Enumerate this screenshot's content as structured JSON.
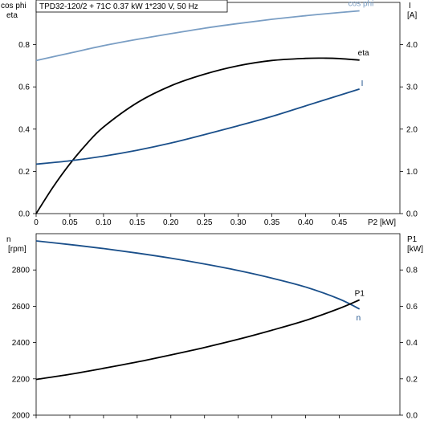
{
  "header": {
    "title": "TPD32-120/2 + 71C   0.37 kW   1*230 V, 50 Hz"
  },
  "colors": {
    "cos_phi": "#7a9ec4",
    "eta": "#000000",
    "current": "#1a4f8a",
    "n": "#1a4f8a",
    "p1": "#000000",
    "axis": "#000000"
  },
  "chart_data": [
    {
      "type": "line",
      "title": "TPD32-120/2 + 71C   0.37 kW   1*230 V, 50 Hz",
      "xlabel": "P2 [kW]",
      "ylabel_left": [
        "cos phi",
        "eta"
      ],
      "ylabel_right": [
        "I",
        "[A]"
      ],
      "xlim": [
        0,
        0.54
      ],
      "ylim_left": [
        0,
        1.0
      ],
      "ylim_right": [
        0,
        5.0
      ],
      "x_ticks": [
        "0",
        "0.05",
        "0.10",
        "0.15",
        "0.20",
        "0.25",
        "0.30",
        "0.35",
        "0.40",
        "0.45"
      ],
      "y_ticks_left": [
        "0.0",
        "0.2",
        "0.4",
        "0.6",
        "0.8"
      ],
      "y_ticks_right": [
        "0.0",
        "1.0",
        "2.0",
        "3.0",
        "4.0"
      ],
      "grid": true,
      "series": [
        {
          "name": "cos phi",
          "axis": "left",
          "x": [
            0,
            0.05,
            0.1,
            0.15,
            0.2,
            0.25,
            0.3,
            0.35,
            0.4,
            0.45,
            0.48
          ],
          "y": [
            0.725,
            0.76,
            0.795,
            0.825,
            0.852,
            0.878,
            0.9,
            0.92,
            0.937,
            0.952,
            0.96
          ]
        },
        {
          "name": "eta",
          "axis": "left",
          "x": [
            0,
            0.025,
            0.05,
            0.075,
            0.1,
            0.15,
            0.2,
            0.25,
            0.3,
            0.35,
            0.4,
            0.43,
            0.45,
            0.48
          ],
          "y": [
            0.0,
            0.125,
            0.235,
            0.33,
            0.41,
            0.525,
            0.605,
            0.66,
            0.7,
            0.725,
            0.735,
            0.736,
            0.734,
            0.727
          ],
          "label": "eta"
        },
        {
          "name": "I",
          "axis": "right",
          "x": [
            0,
            0.05,
            0.1,
            0.15,
            0.2,
            0.25,
            0.3,
            0.35,
            0.4,
            0.45,
            0.48
          ],
          "y": [
            1.17,
            1.25,
            1.36,
            1.5,
            1.67,
            1.87,
            2.08,
            2.3,
            2.55,
            2.8,
            2.95
          ],
          "label": "I"
        }
      ]
    },
    {
      "type": "line",
      "xlabel": "",
      "ylabel_left": [
        "n",
        "[rpm]"
      ],
      "ylabel_right": [
        "P1",
        "[kW]"
      ],
      "xlim": [
        0,
        0.54
      ],
      "ylim_left": [
        2000,
        3000
      ],
      "ylim_right": [
        0.0,
        1.0
      ],
      "x_ticks": [],
      "y_ticks_left": [
        "2000",
        "2200",
        "2400",
        "2600",
        "2800"
      ],
      "y_ticks_right": [
        "0.0",
        "0.2",
        "0.4",
        "0.6",
        "0.8"
      ],
      "grid": true,
      "series": [
        {
          "name": "n",
          "axis": "left",
          "x": [
            0,
            0.05,
            0.1,
            0.15,
            0.2,
            0.25,
            0.3,
            0.35,
            0.4,
            0.45,
            0.48
          ],
          "y": [
            2960,
            2940,
            2918,
            2893,
            2865,
            2833,
            2797,
            2755,
            2706,
            2640,
            2585
          ],
          "label": "n"
        },
        {
          "name": "P1",
          "axis": "right",
          "x": [
            0,
            0.05,
            0.1,
            0.15,
            0.2,
            0.25,
            0.3,
            0.35,
            0.4,
            0.45,
            0.48
          ],
          "y": [
            0.197,
            0.225,
            0.258,
            0.293,
            0.332,
            0.373,
            0.418,
            0.468,
            0.522,
            0.588,
            0.635
          ],
          "label": "P1"
        }
      ]
    }
  ]
}
